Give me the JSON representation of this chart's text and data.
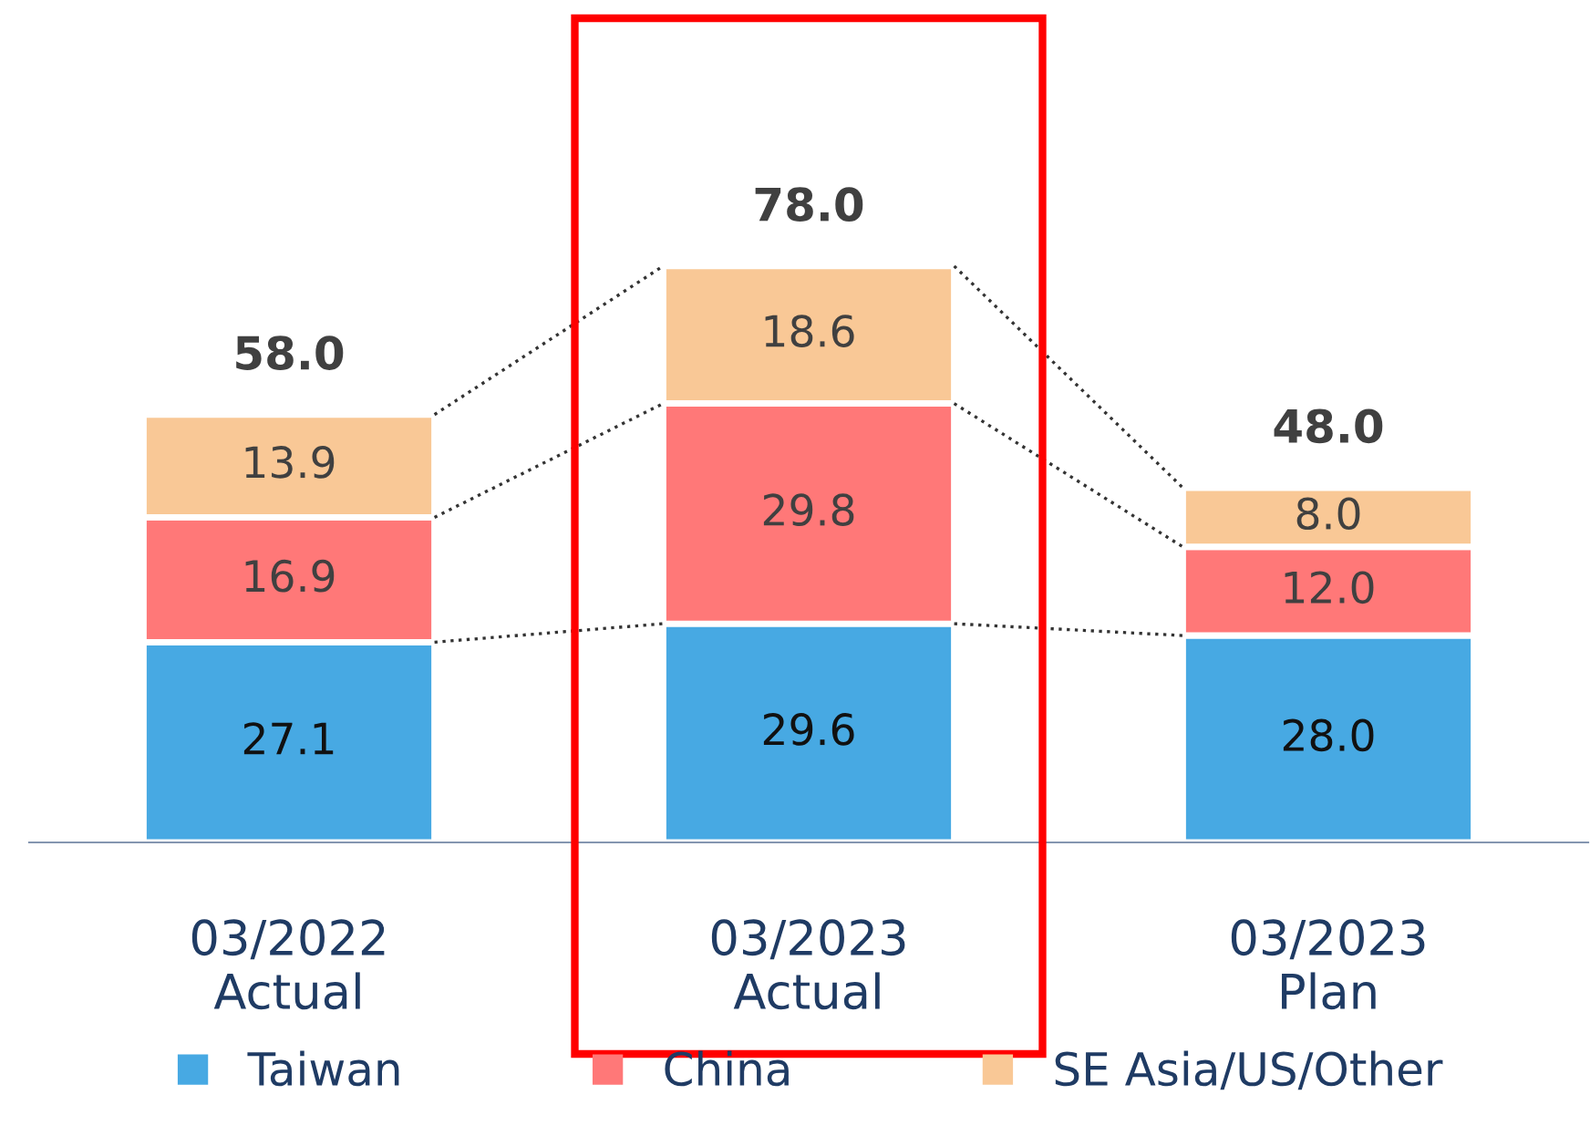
{
  "chart_data": {
    "type": "bar",
    "stacked": true,
    "categories": [
      "03/2022\nActual",
      "03/2023\nActual",
      "03/2023\nPlan"
    ],
    "series": [
      {
        "name": "Taiwan",
        "color": "#47a9e3",
        "values": [
          27.1,
          29.6,
          28.0
        ],
        "value_labels": [
          "27.1",
          "29.6",
          "28.0"
        ]
      },
      {
        "name": "China",
        "color": "#ff7878",
        "values": [
          16.9,
          29.8,
          12.0
        ],
        "value_labels": [
          "16.9",
          "29.8",
          "12.0"
        ]
      },
      {
        "name": "SE Asia/US/Other",
        "color": "#f9c896",
        "values": [
          13.9,
          18.6,
          8.0
        ],
        "value_labels": [
          "13.9",
          "18.6",
          "8.0"
        ]
      }
    ],
    "totals": [
      "58.0",
      "78.0",
      "48.0"
    ],
    "legend": "bottom",
    "grid": false
  }
}
